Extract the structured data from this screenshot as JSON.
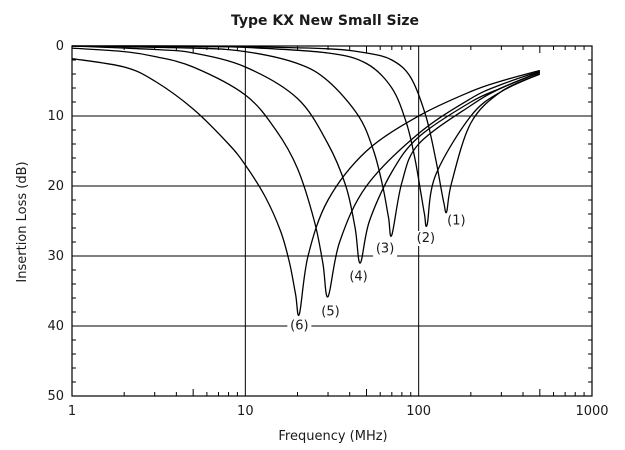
{
  "chart_data": {
    "type": "line",
    "title": "Type KX New Small Size",
    "xlabel": "Frequency (MHz)",
    "ylabel": "Insertion Loss (dB)",
    "x_scale": "log",
    "xlim": [
      1,
      1000
    ],
    "ylim": [
      0,
      50
    ],
    "y_inverted": true,
    "grid": true,
    "x_ticks": [
      {
        "value": 1,
        "label": "1"
      },
      {
        "value": 10,
        "label": "10"
      },
      {
        "value": 100,
        "label": "100"
      },
      {
        "value": 1000,
        "label": "1000"
      }
    ],
    "y_ticks": [
      {
        "value": 0,
        "label": "0"
      },
      {
        "value": 10,
        "label": "10"
      },
      {
        "value": 20,
        "label": "20"
      },
      {
        "value": 30,
        "label": "30"
      },
      {
        "value": 40,
        "label": "40"
      },
      {
        "value": 50,
        "label": "50"
      }
    ],
    "series": [
      {
        "name": "(1)",
        "x": [
          1,
          5,
          10,
          30,
          50,
          70,
          90,
          110,
          125,
          135,
          140,
          145,
          155,
          200,
          300,
          500
        ],
        "y": [
          0,
          0,
          0.1,
          0.4,
          1,
          2,
          4.5,
          10,
          16,
          20.5,
          22.5,
          23.7,
          19.5,
          11,
          6.5,
          4
        ]
      },
      {
        "name": "(2)",
        "x": [
          1,
          5,
          10,
          30,
          50,
          70,
          85,
          95,
          103,
          108,
          112,
          125,
          200,
          300,
          500
        ],
        "y": [
          0,
          0.1,
          0.2,
          1,
          2.5,
          6,
          11,
          16,
          21,
          24,
          25.5,
          18.5,
          10,
          6.5,
          4
        ]
      },
      {
        "name": "(3)",
        "x": [
          1,
          5,
          10,
          20,
          30,
          45,
          55,
          62,
          67,
          70,
          80,
          100,
          200,
          300,
          500
        ],
        "y": [
          0,
          0.3,
          0.8,
          2.5,
          5,
          10,
          15,
          20,
          24.5,
          27,
          19.5,
          14,
          8.5,
          6,
          3.8
        ]
      },
      {
        "name": "(4)",
        "x": [
          1,
          3,
          5,
          10,
          20,
          30,
          38,
          43,
          46,
          52,
          70,
          100,
          200,
          300,
          500
        ],
        "y": [
          0,
          0.5,
          1,
          3,
          7.5,
          14,
          20,
          26,
          31,
          25,
          18,
          13,
          8,
          6,
          3.7
        ]
      },
      {
        "name": "(5)",
        "x": [
          1,
          2,
          3,
          5,
          10,
          15,
          20,
          25,
          28,
          30,
          35,
          50,
          100,
          200,
          300,
          500
        ],
        "y": [
          0.3,
          0.8,
          1.5,
          3,
          7,
          12,
          17.5,
          25,
          31,
          35.8,
          28,
          20,
          12.5,
          7.5,
          5.5,
          3.6
        ]
      },
      {
        "name": "(6)",
        "x": [
          1,
          2,
          3,
          5,
          8,
          10,
          13,
          16,
          18,
          19.5,
          20.5,
          23,
          30,
          50,
          100,
          200,
          300,
          500
        ],
        "y": [
          1.8,
          3,
          5,
          9,
          14,
          17,
          21.5,
          26.5,
          31,
          35.5,
          38.3,
          30,
          22,
          15,
          10,
          6.5,
          5,
          3.5
        ]
      }
    ],
    "annotations": [
      {
        "text": "(1)",
        "x": 165,
        "y": 25.5
      },
      {
        "text": "(2)",
        "x": 110,
        "y": 28
      },
      {
        "text": "(3)",
        "x": 64,
        "y": 29.5
      },
      {
        "text": "(4)",
        "x": 45,
        "y": 33.5
      },
      {
        "text": "(5)",
        "x": 31,
        "y": 38.5
      },
      {
        "text": "(6)",
        "x": 20.5,
        "y": 40.5
      }
    ]
  }
}
